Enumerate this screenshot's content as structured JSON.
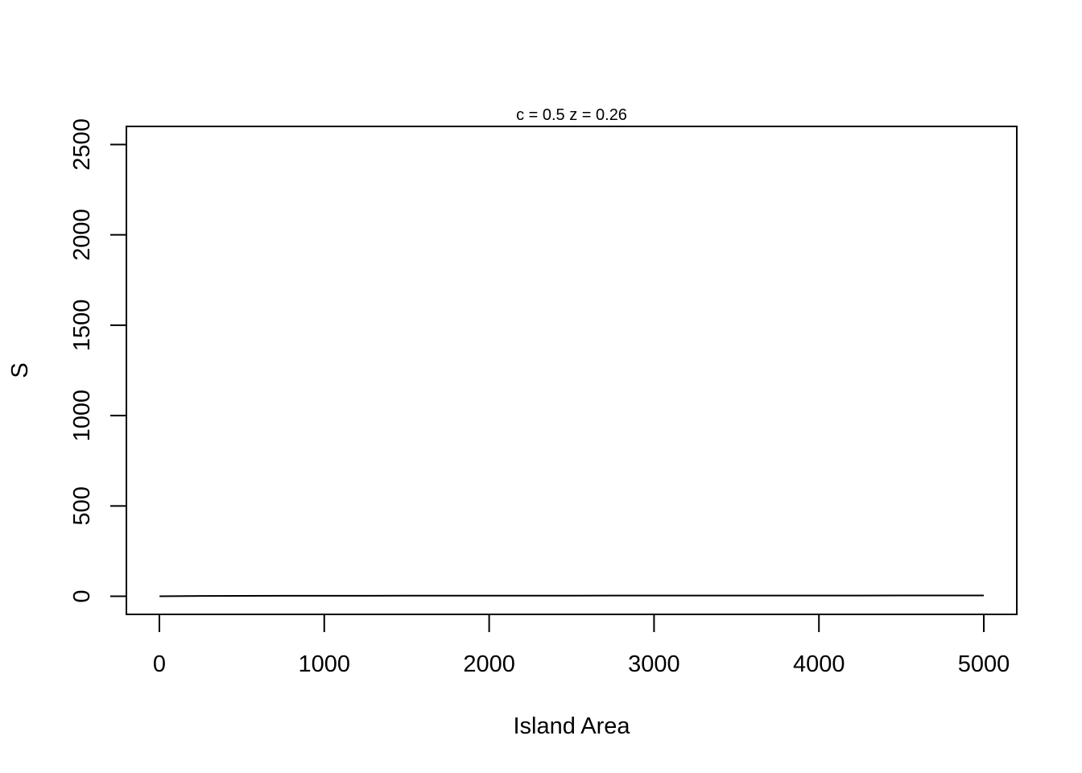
{
  "chart_data": {
    "type": "line",
    "title": "c = 0.5 z =  0.26",
    "xlabel": "Island Area",
    "ylabel": "S",
    "xlim": [
      -200,
      5200
    ],
    "ylim": [
      -100,
      2600
    ],
    "x_ticks": [
      0,
      1000,
      2000,
      3000,
      4000,
      5000
    ],
    "x_tick_labels": [
      "0",
      "1000",
      "2000",
      "3000",
      "4000",
      "5000"
    ],
    "y_ticks": [
      0,
      500,
      1000,
      1500,
      2000,
      2500
    ],
    "y_tick_labels": [
      "0",
      "500",
      "1000",
      "1500",
      "2000",
      "2500"
    ],
    "grid": false,
    "series": [
      {
        "color": "#000000",
        "x": [
          1,
          250,
          500,
          750,
          1000,
          1250,
          1500,
          1750,
          2000,
          2250,
          2500,
          2750,
          3000,
          3250,
          3500,
          3750,
          4000,
          4250,
          4500,
          4750,
          5000
        ],
        "y": [
          0.5,
          2.1,
          2.5,
          2.8,
          3.0,
          3.2,
          3.3,
          3.5,
          3.6,
          3.7,
          3.8,
          3.9,
          4.0,
          4.0,
          4.2,
          4.3,
          4.3,
          4.4,
          4.5,
          4.6,
          4.6
        ]
      }
    ]
  }
}
